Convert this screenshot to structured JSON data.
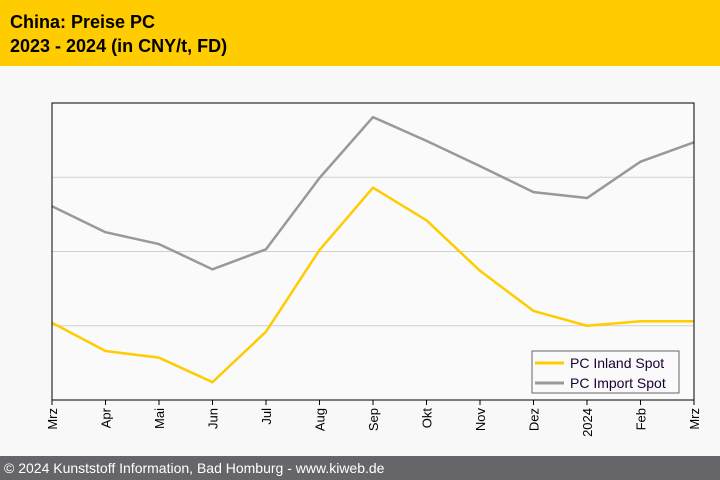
{
  "header": {
    "title_line1": "China: Preise PC",
    "title_line2": "2023 - 2024 (in CNY/t, FD)"
  },
  "footer": {
    "copyright": "© 2024 Kunststoff Information, Bad Homburg - www.kiweb.de"
  },
  "chart_data": {
    "type": "line",
    "title": "China: Preise PC 2023 - 2024 (in CNY/t, FD)",
    "xlabel": "",
    "ylabel": "",
    "categories": [
      "Mrz",
      "Apr",
      "Mai",
      "Jun",
      "Jul",
      "Aug",
      "Sep",
      "Okt",
      "Nov",
      "Dez",
      "2024",
      "Feb",
      "Mrz"
    ],
    "ylim": [
      0,
      4
    ],
    "y_note": "no y tick labels shown; values in relative units (gridline = 1)",
    "grid": true,
    "legend": "bottom-right",
    "series": [
      {
        "name": "PC Inland Spot",
        "color": "#ffcc00",
        "values": [
          1.04,
          0.66,
          0.57,
          0.24,
          0.92,
          2.02,
          2.86,
          2.42,
          1.74,
          1.2,
          1.0,
          1.06,
          1.06
        ]
      },
      {
        "name": "PC Import Spot",
        "color": "#999999",
        "values": [
          2.61,
          2.26,
          2.1,
          1.76,
          2.03,
          2.99,
          3.81,
          3.49,
          3.15,
          2.8,
          2.72,
          3.21,
          3.47
        ]
      }
    ]
  }
}
